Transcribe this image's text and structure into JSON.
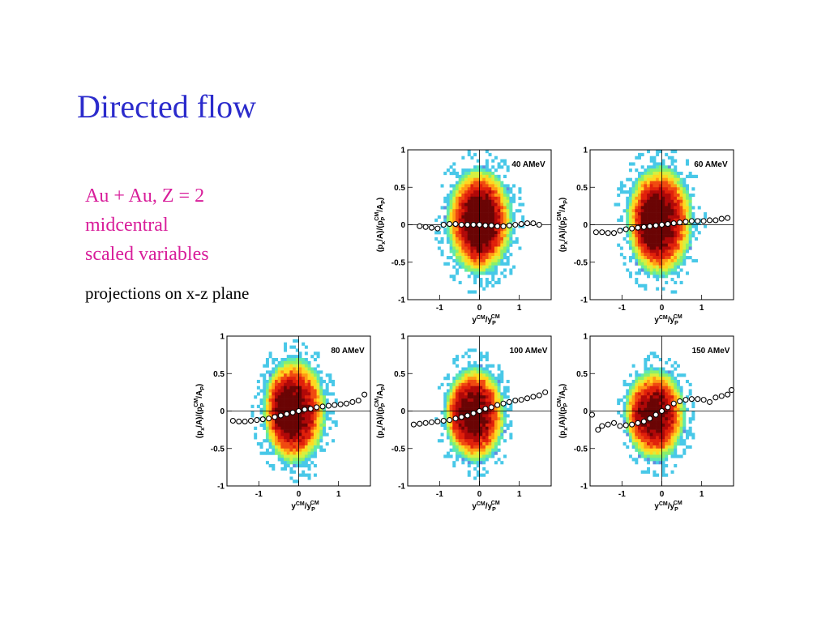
{
  "slide": {
    "title": "Directed flow",
    "subtitle_lines": [
      "Au + Au, Z = 2",
      "midcentral",
      "scaled variables"
    ],
    "caption": "projections on x-z plane",
    "title_color": "#2b2bcc",
    "subtitle_color": "#d81d9a"
  },
  "chart_data": [
    {
      "type": "heatmap",
      "label": "40 AMeV",
      "xlim": [
        -1.8,
        1.8
      ],
      "ylim": [
        -1,
        1
      ],
      "x_ticks": [
        "-1",
        "0",
        "1"
      ],
      "y_ticks": [
        "-1",
        "-0.5",
        "0",
        "0.5",
        "1"
      ],
      "xlabel": "y^CM/y_P^CM",
      "ylabel": "(p_x/A)/(p_P^CM/A_P)",
      "density": {
        "center": [
          0,
          0.05
        ],
        "spread": [
          0.85,
          0.72
        ],
        "peak_offset": 0
      },
      "points": {
        "x": [
          -1.5,
          -1.35,
          -1.2,
          -1.05,
          -0.9,
          -0.75,
          -0.6,
          -0.45,
          -0.3,
          -0.15,
          0,
          0.15,
          0.3,
          0.45,
          0.6,
          0.75,
          0.9,
          1.05,
          1.2,
          1.35,
          1.5
        ],
        "y": [
          -0.02,
          -0.03,
          -0.04,
          -0.05,
          0.0,
          0.01,
          0.01,
          0.0,
          0.0,
          0.0,
          0.0,
          -0.01,
          -0.01,
          -0.02,
          -0.02,
          -0.01,
          0.0,
          0.01,
          0.02,
          0.02,
          0.0
        ]
      }
    },
    {
      "type": "heatmap",
      "label": "60 AMeV",
      "xlim": [
        -1.8,
        1.8
      ],
      "ylim": [
        -1,
        1
      ],
      "x_ticks": [
        "-1",
        "0",
        "1"
      ],
      "y_ticks": [
        "-1",
        "-0.5",
        "0",
        "0.5",
        "1"
      ],
      "xlabel": "y^CM/y_P^CM",
      "ylabel": "(p_x/A)/(p_P^CM/A_P)",
      "density": {
        "center": [
          -0.05,
          0.05
        ],
        "spread": [
          0.85,
          0.75
        ],
        "peak_offset": -0.3
      },
      "points": {
        "x": [
          -1.65,
          -1.5,
          -1.35,
          -1.2,
          -1.05,
          -0.9,
          -0.75,
          -0.6,
          -0.45,
          -0.3,
          -0.15,
          0,
          0.15,
          0.3,
          0.45,
          0.6,
          0.75,
          0.9,
          1.05,
          1.2,
          1.35,
          1.5,
          1.65
        ],
        "y": [
          -0.1,
          -0.1,
          -0.11,
          -0.11,
          -0.08,
          -0.06,
          -0.05,
          -0.04,
          -0.03,
          -0.02,
          -0.01,
          0.0,
          0.01,
          0.02,
          0.03,
          0.04,
          0.05,
          0.05,
          0.05,
          0.06,
          0.06,
          0.08,
          0.09
        ]
      }
    },
    {
      "type": "heatmap",
      "label": "80 AMeV",
      "xlim": [
        -1.8,
        1.8
      ],
      "ylim": [
        -1,
        1
      ],
      "x_ticks": [
        "-1",
        "0",
        "1"
      ],
      "y_ticks": [
        "-1",
        "-0.5",
        "0",
        "0.5",
        "1"
      ],
      "xlabel": "y^CM/y_P^CM",
      "ylabel": "(p_x/A)/(p_P^CM/A_P)",
      "density": {
        "center": [
          -0.1,
          0.0
        ],
        "spread": [
          0.8,
          0.72
        ],
        "peak_offset": -0.5
      },
      "points": {
        "x": [
          -1.65,
          -1.5,
          -1.35,
          -1.2,
          -1.05,
          -0.9,
          -0.75,
          -0.6,
          -0.45,
          -0.3,
          -0.15,
          0,
          0.15,
          0.3,
          0.45,
          0.6,
          0.75,
          0.9,
          1.05,
          1.2,
          1.35,
          1.5,
          1.65
        ],
        "y": [
          -0.13,
          -0.14,
          -0.14,
          -0.13,
          -0.12,
          -0.11,
          -0.1,
          -0.08,
          -0.06,
          -0.04,
          -0.02,
          0.0,
          0.02,
          0.03,
          0.05,
          0.06,
          0.07,
          0.08,
          0.09,
          0.1,
          0.12,
          0.14,
          0.22
        ]
      }
    },
    {
      "type": "heatmap",
      "label": "100 AMeV",
      "xlim": [
        -1.8,
        1.8
      ],
      "ylim": [
        -1,
        1
      ],
      "x_ticks": [
        "-1",
        "0",
        "1"
      ],
      "y_ticks": [
        "-1",
        "-0.5",
        "0",
        "0.5",
        "1"
      ],
      "xlabel": "y^CM/y_P^CM",
      "ylabel": "(p_x/A)/(p_P^CM/A_P)",
      "density": {
        "center": [
          -0.1,
          -0.05
        ],
        "spread": [
          0.75,
          0.65
        ],
        "peak_offset": -0.65
      },
      "points": {
        "x": [
          -1.65,
          -1.5,
          -1.35,
          -1.2,
          -1.05,
          -0.9,
          -0.75,
          -0.6,
          -0.45,
          -0.3,
          -0.15,
          0,
          0.15,
          0.3,
          0.45,
          0.6,
          0.75,
          0.9,
          1.05,
          1.2,
          1.35,
          1.5,
          1.65
        ],
        "y": [
          -0.18,
          -0.17,
          -0.16,
          -0.15,
          -0.14,
          -0.13,
          -0.12,
          -0.1,
          -0.08,
          -0.06,
          -0.03,
          0.0,
          0.03,
          0.05,
          0.08,
          0.1,
          0.12,
          0.14,
          0.15,
          0.17,
          0.19,
          0.21,
          0.25
        ]
      }
    },
    {
      "type": "heatmap",
      "label": "150 AMeV",
      "xlim": [
        -1.8,
        1.8
      ],
      "ylim": [
        -1,
        1
      ],
      "x_ticks": [
        "-1",
        "0",
        "1"
      ],
      "y_ticks": [
        "-1",
        "-0.5",
        "0",
        "0.5",
        "1"
      ],
      "xlabel": "y^CM/y_P^CM",
      "ylabel": "(p_x/A)/(p_P^CM/A_P)",
      "density": {
        "center": [
          -0.15,
          -0.05
        ],
        "spread": [
          0.75,
          0.62
        ],
        "peak_offset": -0.8
      },
      "points": {
        "x": [
          -1.75,
          -1.6,
          -1.5,
          -1.35,
          -1.2,
          -1.05,
          -0.9,
          -0.75,
          -0.6,
          -0.45,
          -0.3,
          -0.15,
          0,
          0.15,
          0.3,
          0.45,
          0.6,
          0.75,
          0.9,
          1.05,
          1.2,
          1.35,
          1.5,
          1.65,
          1.75
        ],
        "y": [
          -0.05,
          -0.25,
          -0.2,
          -0.18,
          -0.16,
          -0.2,
          -0.19,
          -0.18,
          -0.16,
          -0.14,
          -0.1,
          -0.05,
          0.0,
          0.05,
          0.1,
          0.13,
          0.15,
          0.16,
          0.16,
          0.15,
          0.12,
          0.18,
          0.2,
          0.22,
          0.28
        ]
      }
    }
  ]
}
